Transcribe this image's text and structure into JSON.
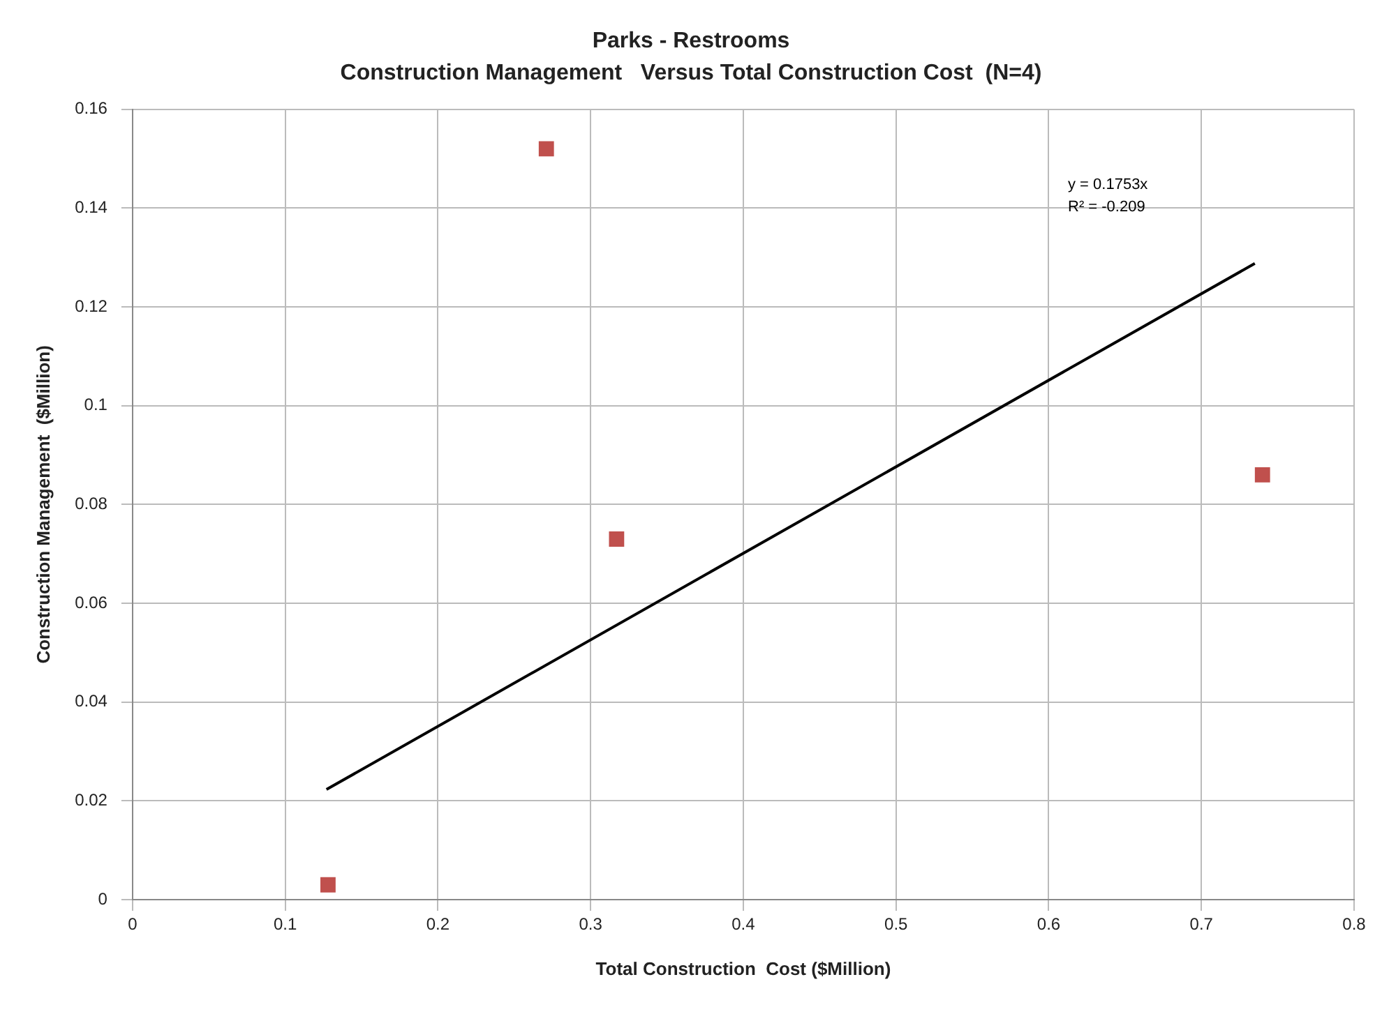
{
  "chart_data": {
    "type": "scatter",
    "title": "Parks - Restrooms",
    "subtitle": "Construction Management   Versus Total Construction Cost  (N=4)",
    "xlabel": "Total Construction  Cost ($Million)",
    "ylabel": "Construction Management  ($Million)",
    "marker": "square",
    "grid": true,
    "xlim": [
      0,
      0.8
    ],
    "xticks": [
      0,
      0.1,
      0.2,
      0.3,
      0.4,
      0.5,
      0.6,
      0.7,
      0.8
    ],
    "ylim": [
      0,
      0.16
    ],
    "yticks": [
      0,
      0.02,
      0.04,
      0.06,
      0.08,
      0.1,
      0.12,
      0.14,
      0.16
    ],
    "series": [
      {
        "type": "scatter",
        "color": "#c0504d",
        "x": [
          0.128,
          0.271,
          0.317,
          0.74
        ],
        "values": [
          0.003,
          0.152,
          0.073,
          0.086
        ]
      },
      {
        "type": "line",
        "color": "#000000",
        "marker": "none",
        "x": [
          0.127,
          0.735
        ],
        "values": [
          0.0223,
          0.1288
        ]
      }
    ],
    "annotations": [
      "y = 0.1753x",
      "R² = -0.209"
    ]
  }
}
